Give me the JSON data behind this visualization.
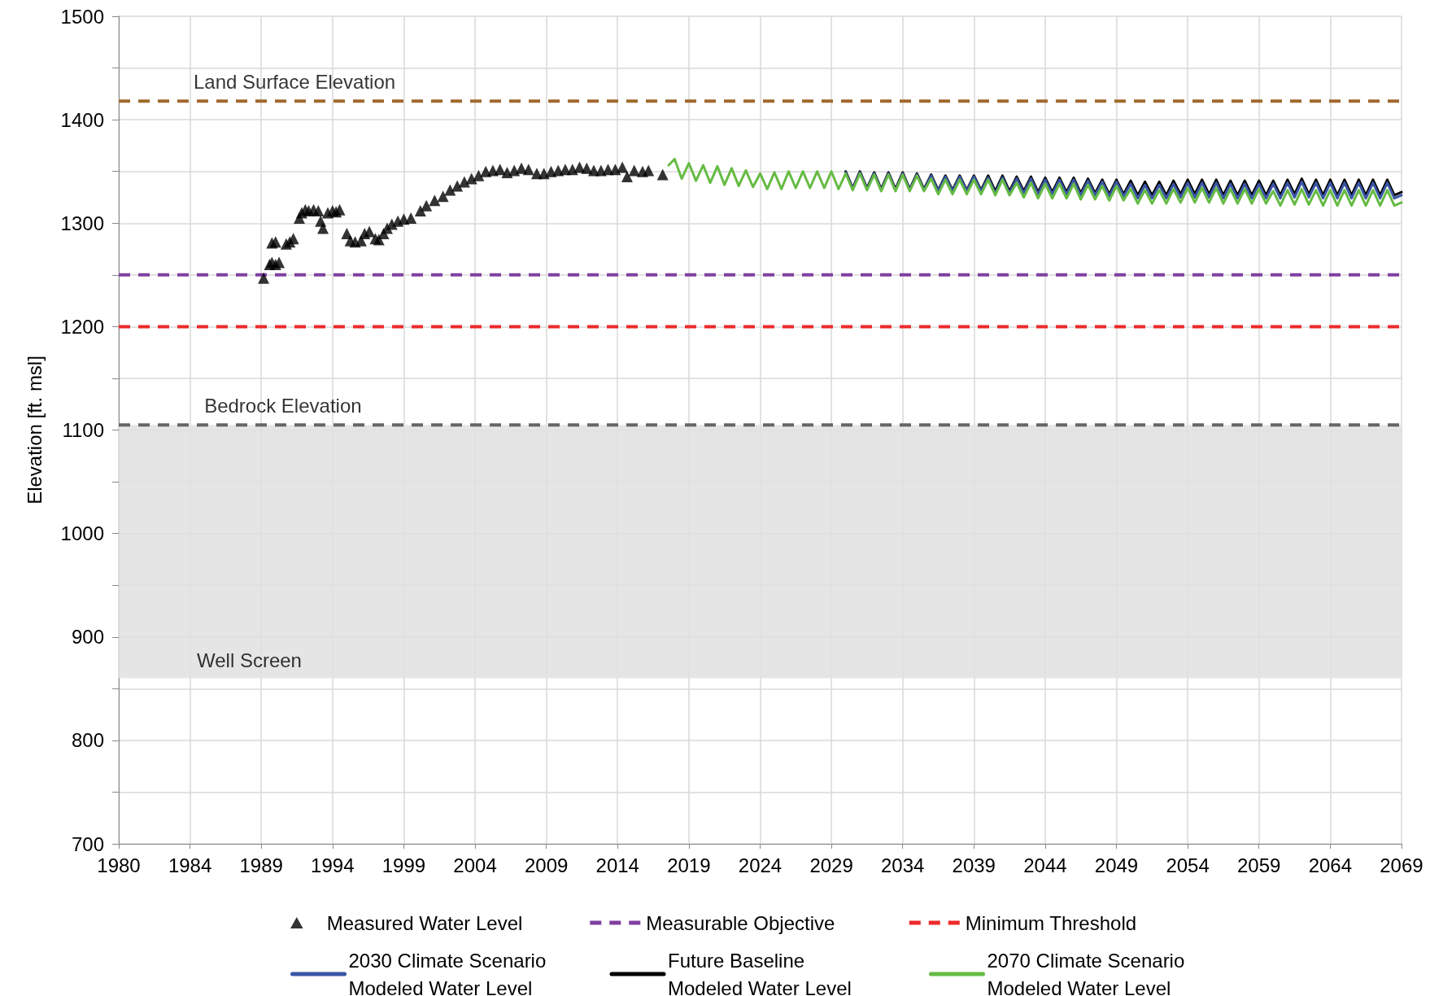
{
  "chart_data": {
    "type": "line",
    "ylabel": "Elevation [ft. msl]",
    "xlim": [
      "1980-01-01",
      "2070-01-01"
    ],
    "xticks": [
      {
        "value": "1980-01-01",
        "label": "1980"
      },
      {
        "value": "1984-12-31",
        "label": "1984"
      },
      {
        "value": "1989-12-31",
        "label": "1989"
      },
      {
        "value": "1994-12-31",
        "label": "1994"
      },
      {
        "value": "1999-12-31",
        "label": "1999"
      },
      {
        "value": "2004-12-31",
        "label": "2004"
      },
      {
        "value": "2009-12-31",
        "label": "2009"
      },
      {
        "value": "2014-12-31",
        "label": "2014"
      },
      {
        "value": "2019-12-31",
        "label": "2019"
      },
      {
        "value": "2024-12-31",
        "label": "2024"
      },
      {
        "value": "2029-12-31",
        "label": "2029"
      },
      {
        "value": "2034-12-31",
        "label": "2034"
      },
      {
        "value": "2039-12-31",
        "label": "2039"
      },
      {
        "value": "2044-12-31",
        "label": "2044"
      },
      {
        "value": "2049-12-31",
        "label": "2049"
      },
      {
        "value": "2054-12-31",
        "label": "2054"
      },
      {
        "value": "2059-12-31",
        "label": "2059"
      },
      {
        "value": "2064-12-31",
        "label": "2064"
      },
      {
        "value": "2069-12-31",
        "label": "2069"
      }
    ],
    "ylim": [
      700,
      1500
    ],
    "yticks": [
      700,
      {
        "value": 750,
        "label": null
      },
      800,
      {
        "value": 850,
        "label": null
      },
      900,
      {
        "value": 950,
        "label": null
      },
      1000,
      {
        "value": 1050,
        "label": null
      },
      1100,
      {
        "value": 1150,
        "label": null
      },
      1200,
      {
        "value": 1250,
        "label": null
      },
      1300,
      {
        "value": 1350,
        "label": null
      },
      1400,
      {
        "value": 1450,
        "label": null
      },
      1500
    ],
    "grid": true,
    "legend": "bottom",
    "x": [
      "2018-08",
      "2019-01",
      "2019-07",
      "2020-01",
      "2020-07",
      "2021-01",
      "2021-07",
      "2022-01",
      "2022-07",
      "2023-01",
      "2023-07",
      "2024-01",
      "2024-07",
      "2025-01",
      "2025-07",
      "2026-01",
      "2026-07",
      "2027-01",
      "2027-07",
      "2028-01",
      "2028-07",
      "2029-01",
      "2029-07",
      "2030-01",
      "2030-07",
      "2031-01",
      "2031-07",
      "2032-01",
      "2032-07",
      "2033-01",
      "2033-07",
      "2034-01",
      "2034-07",
      "2035-01",
      "2035-07",
      "2036-01",
      "2036-07",
      "2037-01",
      "2037-07",
      "2038-01",
      "2038-07",
      "2039-01",
      "2039-07",
      "2040-01",
      "2040-07",
      "2041-01",
      "2041-07",
      "2042-01",
      "2042-07",
      "2043-01",
      "2043-07",
      "2044-01",
      "2044-07",
      "2045-01",
      "2045-07",
      "2046-01",
      "2046-07",
      "2047-01",
      "2047-07",
      "2048-01",
      "2048-07",
      "2049-01",
      "2049-07",
      "2050-01",
      "2050-07",
      "2051-01",
      "2051-07",
      "2052-01",
      "2052-07",
      "2053-01",
      "2053-07",
      "2054-01",
      "2054-07",
      "2055-01",
      "2055-07",
      "2056-01",
      "2056-07",
      "2057-01",
      "2057-07",
      "2058-01",
      "2058-07",
      "2059-01",
      "2059-07",
      "2060-01",
      "2060-07",
      "2061-01",
      "2061-07",
      "2062-01",
      "2062-07",
      "2063-01",
      "2063-07",
      "2064-01",
      "2064-07",
      "2065-01",
      "2065-07",
      "2066-01",
      "2066-07",
      "2067-01",
      "2067-07",
      "2068-01",
      "2068-07",
      "2069-01",
      "2069-07",
      "2070-01"
    ],
    "series": [
      {
        "name": "Measured Water Level",
        "type": "scatter",
        "marker": "triangle",
        "color": "#000000",
        "x": [
          "1990-03",
          "1990-08",
          "1990-10",
          "1991-01",
          "1991-04",
          "1990-10",
          "1991-01",
          "1991-10",
          "1992-01",
          "1992-04",
          "1992-09",
          "1992-11",
          "1993-02",
          "1993-05",
          "1993-09",
          "1994-01",
          "1994-03",
          "1994-05",
          "1994-09",
          "1995-01",
          "1995-04",
          "1995-07",
          "1996-01",
          "1996-04",
          "1996-08",
          "1997-01",
          "1997-04",
          "1997-08",
          "1998-01",
          "1998-04",
          "1998-08",
          "1998-11",
          "1999-03",
          "1999-08",
          "2000-01",
          "2000-07",
          "2001-03",
          "2001-08",
          "2002-03",
          "2002-10",
          "2003-04",
          "2003-10",
          "2004-04",
          "2004-10",
          "2005-04",
          "2005-10",
          "2006-04",
          "2006-10",
          "2007-04",
          "2007-10",
          "2008-04",
          "2008-10",
          "2009-05",
          "2009-11",
          "2010-05",
          "2010-11",
          "2011-05",
          "2011-11",
          "2012-05",
          "2012-11",
          "2013-05",
          "2013-11",
          "2014-05",
          "2014-11",
          "2015-05",
          "2015-09",
          "2016-03",
          "2016-10",
          "2017-03",
          "2018-03"
        ],
        "values": [
          1247,
          1260,
          1262,
          1260,
          1262,
          1281,
          1282,
          1280,
          1282,
          1285,
          1305,
          1310,
          1313,
          1312,
          1313,
          1312,
          1302,
          1295,
          1310,
          1312,
          1311,
          1313,
          1290,
          1283,
          1282,
          1283,
          1290,
          1292,
          1285,
          1284,
          1290,
          1295,
          1299,
          1302,
          1304,
          1305,
          1312,
          1317,
          1322,
          1326,
          1332,
          1336,
          1340,
          1343,
          1346,
          1350,
          1351,
          1352,
          1349,
          1351,
          1353,
          1352,
          1348,
          1348,
          1350,
          1351,
          1352,
          1352,
          1354,
          1353,
          1351,
          1351,
          1352,
          1352,
          1354,
          1345,
          1351,
          1350,
          1351,
          1347
        ]
      },
      {
        "name": "2030 Climate Scenario Modeled Water Level",
        "marker": "none",
        "line_style": "solid",
        "color": "#3a56a5",
        "values": [
          null,
          null,
          null,
          null,
          null,
          null,
          null,
          null,
          null,
          null,
          null,
          null,
          null,
          null,
          null,
          null,
          null,
          null,
          null,
          null,
          null,
          null,
          null,
          null,
          null,
          1349,
          1333,
          1349,
          1333,
          1348,
          1332,
          1348,
          1332,
          1348,
          1332,
          1347,
          1332,
          1346,
          1331,
          1345,
          1331,
          1345,
          1331,
          1345,
          1331,
          1344,
          1329,
          1344,
          1329,
          1343,
          1329,
          1343,
          1328,
          1342,
          1328,
          1342,
          1328,
          1342,
          1327,
          1341,
          1327,
          1340,
          1326,
          1340,
          1326,
          1338,
          1324,
          1337,
          1324,
          1337,
          1324,
          1338,
          1325,
          1339,
          1325,
          1339,
          1325,
          1339,
          1324,
          1338,
          1324,
          1338,
          1324,
          1338,
          1324,
          1338,
          1324,
          1339,
          1325,
          1340,
          1325,
          1339,
          1324,
          1339,
          1324,
          1339,
          1324,
          1339,
          1324,
          1339,
          1324,
          1339,
          1324,
          1327
        ]
      },
      {
        "name": "Future Baseline Modeled Water Level",
        "marker": "none",
        "line_style": "solid",
        "color": "#000000",
        "values": [
          null,
          null,
          null,
          null,
          null,
          null,
          null,
          null,
          null,
          null,
          null,
          null,
          null,
          null,
          null,
          null,
          null,
          null,
          null,
          null,
          null,
          null,
          null,
          null,
          null,
          1350,
          1334,
          1350,
          1334,
          1349,
          1333,
          1349,
          1333,
          1349,
          1333,
          1348,
          1333,
          1347,
          1332,
          1346,
          1332,
          1346,
          1332,
          1346,
          1332,
          1346,
          1331,
          1346,
          1331,
          1345,
          1331,
          1345,
          1330,
          1344,
          1330,
          1344,
          1330,
          1344,
          1329,
          1343,
          1329,
          1342,
          1328,
          1342,
          1328,
          1341,
          1327,
          1340,
          1327,
          1340,
          1327,
          1341,
          1328,
          1342,
          1328,
          1342,
          1328,
          1342,
          1327,
          1341,
          1327,
          1341,
          1327,
          1341,
          1327,
          1341,
          1327,
          1342,
          1328,
          1343,
          1328,
          1342,
          1327,
          1342,
          1327,
          1342,
          1327,
          1342,
          1327,
          1342,
          1327,
          1342,
          1327,
          1330
        ]
      },
      {
        "name": "2070 Climate Scenario Modeled Water Level",
        "marker": "none",
        "line_style": "solid",
        "color": "#66bb44",
        "values": [
          1356,
          1362,
          1343,
          1358,
          1341,
          1356,
          1339,
          1355,
          1337,
          1353,
          1336,
          1351,
          1335,
          1348,
          1333,
          1349,
          1333,
          1350,
          1334,
          1350,
          1334,
          1350,
          1334,
          1350,
          1333,
          1348,
          1332,
          1348,
          1332,
          1347,
          1331,
          1347,
          1331,
          1347,
          1331,
          1346,
          1331,
          1343,
          1328,
          1342,
          1328,
          1342,
          1328,
          1342,
          1328,
          1342,
          1327,
          1342,
          1327,
          1339,
          1325,
          1339,
          1324,
          1338,
          1324,
          1338,
          1324,
          1338,
          1323,
          1337,
          1323,
          1336,
          1322,
          1336,
          1322,
          1333,
          1319,
          1332,
          1319,
          1332,
          1319,
          1333,
          1320,
          1334,
          1320,
          1334,
          1320,
          1334,
          1319,
          1333,
          1319,
          1333,
          1319,
          1333,
          1319,
          1331,
          1317,
          1332,
          1318,
          1333,
          1318,
          1332,
          1317,
          1332,
          1317,
          1332,
          1317,
          1332,
          1317,
          1332,
          1317,
          1332,
          1317,
          1320
        ]
      }
    ],
    "ref_lines": [
      {
        "axis": "y",
        "value": 1418,
        "color": "#a0692e",
        "line_style": "dashed"
      },
      {
        "axis": "y",
        "value": 1250,
        "label": "Measurable Objective",
        "color": "#8040a0",
        "line_style": "dashed"
      },
      {
        "axis": "y",
        "value": 1200,
        "label": "Minimum Threshold",
        "color": "#ee2a2a",
        "line_style": "dashed"
      },
      {
        "axis": "y",
        "value": 1105,
        "color": "#666666",
        "line_style": "dashed"
      }
    ],
    "bands": [
      {
        "axis": "y",
        "from": 860,
        "to": 1105,
        "label": "Well Screen",
        "color": "#e0e0e0"
      }
    ],
    "annotations": [
      {
        "text": "Land Surface Elevation",
        "x": "1985-04",
        "y": 1418
      },
      {
        "text": "Bedrock Elevation",
        "x": "1986-01",
        "y": 1105
      }
    ]
  }
}
